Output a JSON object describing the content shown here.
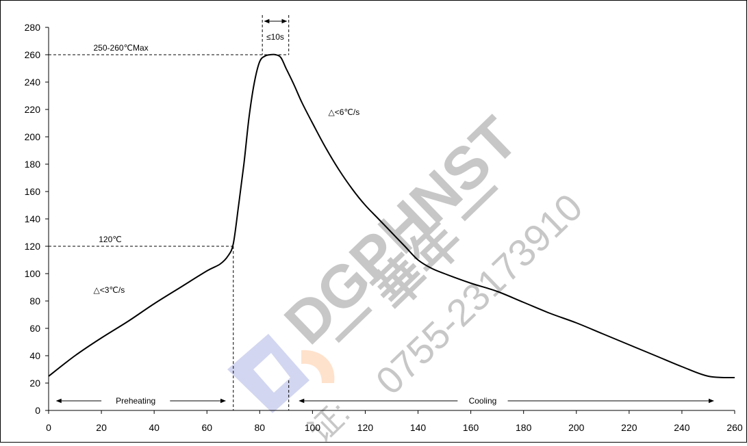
{
  "chart_data": {
    "type": "line",
    "title": "",
    "xlabel": "",
    "ylabel": "",
    "xlim": [
      0,
      260
    ],
    "ylim": [
      0,
      280
    ],
    "x_ticks": [
      0,
      20,
      40,
      60,
      80,
      100,
      120,
      140,
      160,
      180,
      200,
      220,
      240,
      260
    ],
    "y_ticks": [
      0,
      20,
      40,
      60,
      80,
      100,
      120,
      140,
      160,
      180,
      200,
      220,
      240,
      260,
      280
    ],
    "grid": false,
    "legend": "none",
    "series": [
      {
        "color": "#000000",
        "points": [
          [
            0,
            25
          ],
          [
            10,
            40
          ],
          [
            20,
            53
          ],
          [
            30,
            65
          ],
          [
            40,
            78
          ],
          [
            50,
            90
          ],
          [
            60,
            102
          ],
          [
            65,
            107
          ],
          [
            68,
            113
          ],
          [
            70,
            122
          ],
          [
            72,
            150
          ],
          [
            74,
            180
          ],
          [
            76,
            215
          ],
          [
            78,
            240
          ],
          [
            80,
            255
          ],
          [
            82,
            259
          ],
          [
            84,
            260
          ],
          [
            86,
            260
          ],
          [
            88,
            258
          ],
          [
            90,
            250
          ],
          [
            93,
            238
          ],
          [
            96,
            225
          ],
          [
            100,
            210
          ],
          [
            105,
            192
          ],
          [
            110,
            176
          ],
          [
            115,
            162
          ],
          [
            120,
            150
          ],
          [
            125,
            140
          ],
          [
            130,
            130
          ],
          [
            135,
            120
          ],
          [
            140,
            110
          ],
          [
            145,
            104
          ],
          [
            150,
            100
          ],
          [
            160,
            93
          ],
          [
            170,
            87
          ],
          [
            180,
            79
          ],
          [
            190,
            71
          ],
          [
            200,
            64
          ],
          [
            210,
            56
          ],
          [
            220,
            48
          ],
          [
            230,
            40
          ],
          [
            240,
            32
          ],
          [
            250,
            25
          ],
          [
            260,
            24
          ]
        ]
      }
    ],
    "reference_lines": {
      "peak_temp": 260,
      "preheat_temp": 120,
      "preheat_end_time": 70,
      "peak_window": [
        81,
        91
      ],
      "cooling_marker_time": 91
    },
    "annotations": {
      "peak": "250-260℃Max",
      "peak_window": "≤10s",
      "preheat_temp": "120℃",
      "heat_rate": "△<3℃/s",
      "cool_rate": "△<6℃/s",
      "preheating": "Preheating",
      "cooling": "Cooling"
    },
    "watermark": {
      "brand": "DGPHNST",
      "chinese": "一 華年 一",
      "phone": "0755-23173910",
      "fragment": "证:"
    }
  }
}
